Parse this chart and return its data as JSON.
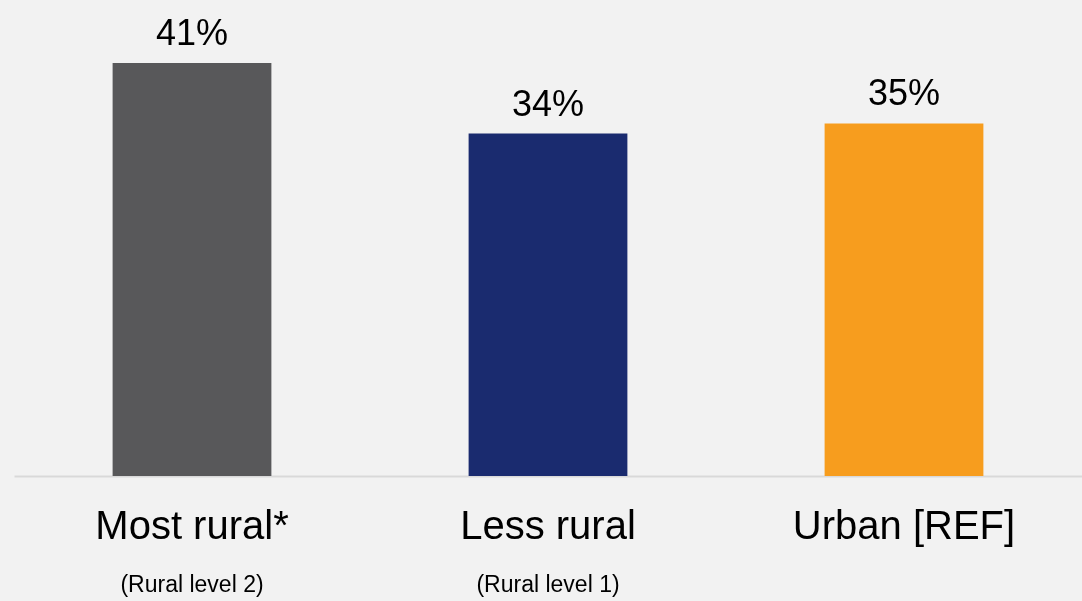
{
  "chart_data": {
    "type": "bar",
    "categories": [
      "Most rural*",
      "Less rural",
      "Urban [REF]"
    ],
    "values": [
      41,
      34,
      35
    ],
    "value_labels": [
      "41%",
      "34%",
      "35%"
    ],
    "colors": [
      "#58585a",
      "#1a2b6f",
      "#f79d1e"
    ],
    "annotations": [
      "(Rural level 2)",
      "(Rural level 1)"
    ]
  }
}
